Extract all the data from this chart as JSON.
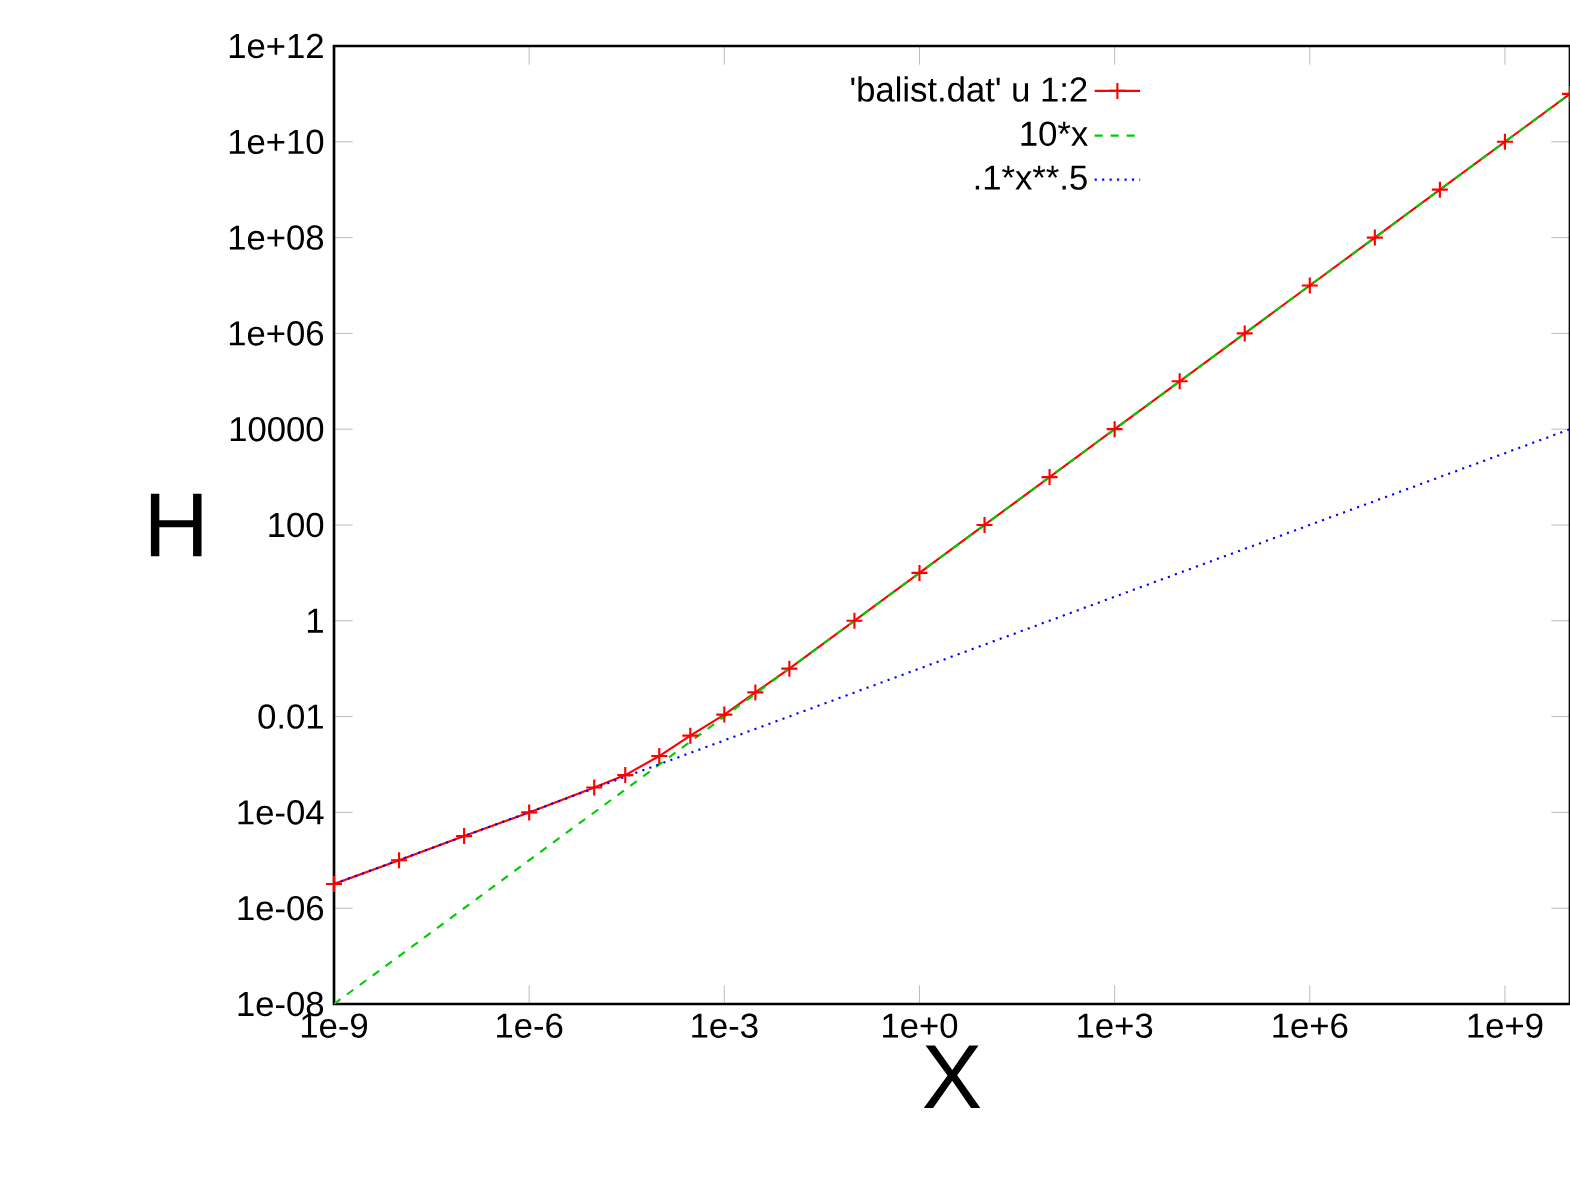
{
  "chart_data": {
    "type": "line",
    "xlabel": "X",
    "ylabel": "H",
    "log": "xy",
    "legend": "top right",
    "grid": false,
    "xlim": [
      1e-09,
      10000000000.0
    ],
    "ylim": [
      1e-08,
      1000000000000.0
    ],
    "xticks": [
      {
        "value": 1e-09,
        "label": "1e-9"
      },
      {
        "value": 1e-06,
        "label": "1e-6"
      },
      {
        "value": 0.001,
        "label": "1e-3"
      },
      {
        "value": 1,
        "label": "1e+0"
      },
      {
        "value": 1000.0,
        "label": "1e+3"
      },
      {
        "value": 1000000.0,
        "label": "1e+6"
      },
      {
        "value": 1000000000.0,
        "label": "1e+9"
      }
    ],
    "yticks": [
      {
        "value": 1e-08,
        "label": "1e-08"
      },
      {
        "value": 1e-06,
        "label": "1e-06"
      },
      {
        "value": 0.0001,
        "label": "1e-04"
      },
      0.01,
      1,
      100,
      10000,
      {
        "value": 1000000.0,
        "label": "1e+06"
      },
      {
        "value": 100000000.0,
        "label": "1e+08"
      },
      {
        "value": 10000000000.0,
        "label": "1e+10"
      },
      {
        "value": 1000000000000.0,
        "label": "1e+12"
      }
    ],
    "series": [
      {
        "name": "'balist.dat' u 1:2",
        "color": "#ff0000",
        "marker": "cross",
        "line_style": "solid",
        "x": [
          1e-09,
          1e-08,
          1e-07,
          1e-06,
          1e-05,
          3e-05,
          0.0001,
          0.0003,
          0.001,
          0.003,
          0.01,
          0.1,
          1,
          10,
          100,
          1000.0,
          10000.0,
          100000.0,
          1000000.0,
          10000000.0,
          100000000.0,
          1000000000.0,
          10000000000.0
        ],
        "values": [
          3.2e-06,
          1e-05,
          3.2e-05,
          0.0001,
          0.00033,
          0.0006,
          0.0015,
          0.004,
          0.011,
          0.032,
          0.1,
          1,
          10,
          100,
          1000.0,
          10000.0,
          100000.0,
          1000000.0,
          10000000.0,
          100000000.0,
          1000000000.0,
          10000000000.0,
          100000000000.0
        ]
      },
      {
        "name": "10*x",
        "color": "#00cc00",
        "marker": "none",
        "line_style": "dashed",
        "x": [
          1e-09,
          10000000000.0
        ],
        "values": [
          1e-08,
          100000000000.0
        ]
      },
      {
        "name": ".1*x**.5",
        "color": "#0000ff",
        "marker": "none",
        "line_style": "dotted",
        "x": [
          1e-09,
          10000000000.0
        ],
        "values": [
          3.2e-06,
          10000.0
        ]
      }
    ]
  }
}
